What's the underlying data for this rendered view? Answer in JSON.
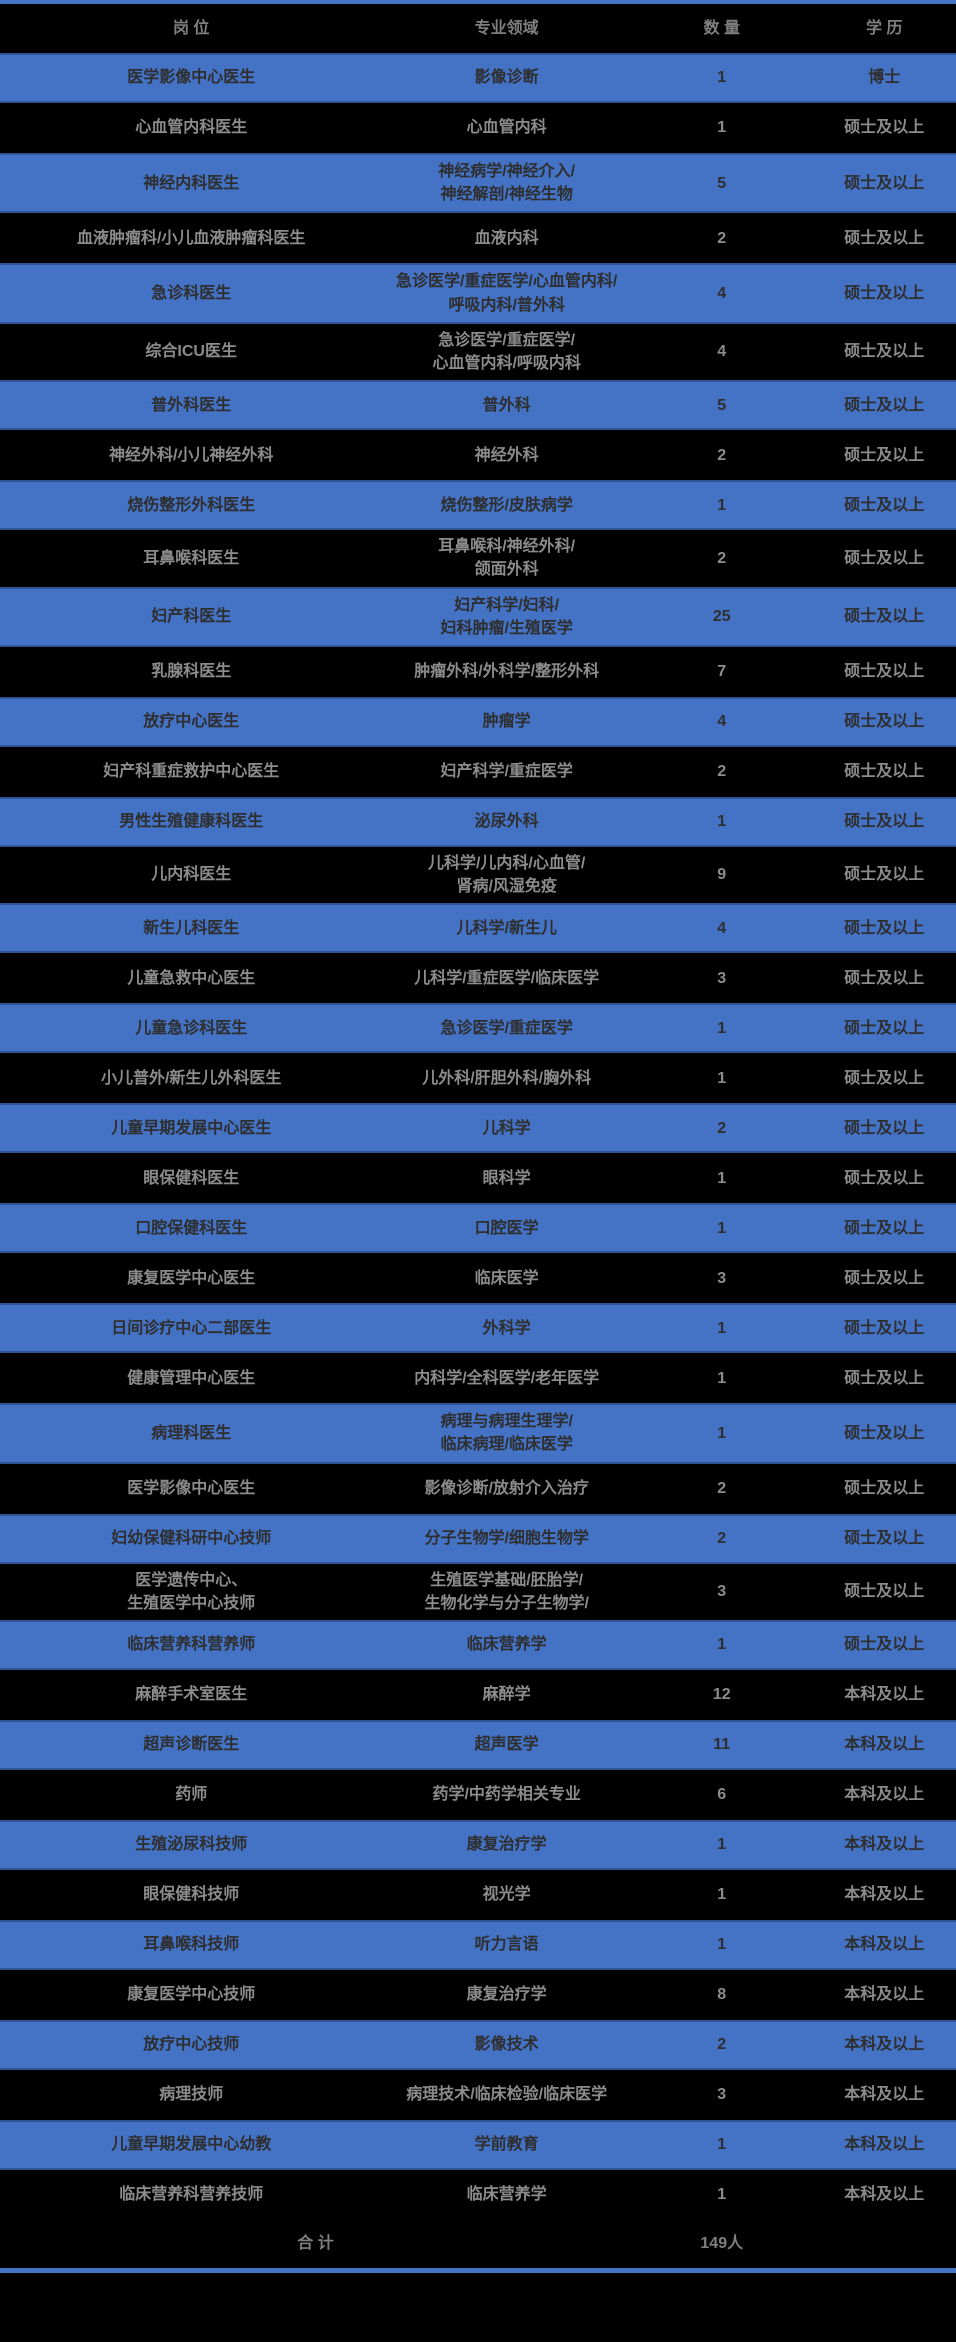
{
  "table": {
    "headers": {
      "position": "岗 位",
      "field": "专业领域",
      "count": "数 量",
      "education": "学 历"
    },
    "rows": [
      {
        "position": "医学影像中心医生",
        "field": "影像诊断",
        "count": "1",
        "education": "博士"
      },
      {
        "position": "心血管内科医生",
        "field": "心血管内科",
        "count": "1",
        "education": "硕士及以上"
      },
      {
        "position": "神经内科医生",
        "field": "神经病学/神经介入/\n神经解剖/神经生物",
        "count": "5",
        "education": "硕士及以上"
      },
      {
        "position": "血液肿瘤科/小儿血液肿瘤科医生",
        "field": "血液内科",
        "count": "2",
        "education": "硕士及以上"
      },
      {
        "position": "急诊科医生",
        "field": "急诊医学/重症医学/心血管内科/\n呼吸内科/普外科",
        "count": "4",
        "education": "硕士及以上"
      },
      {
        "position": "综合ICU医生",
        "field": "急诊医学/重症医学/\n心血管内科/呼吸内科",
        "count": "4",
        "education": "硕士及以上"
      },
      {
        "position": "普外科医生",
        "field": "普外科",
        "count": "5",
        "education": "硕士及以上"
      },
      {
        "position": "神经外科/小儿神经外科",
        "field": "神经外科",
        "count": "2",
        "education": "硕士及以上"
      },
      {
        "position": "烧伤整形外科医生",
        "field": "烧伤整形/皮肤病学",
        "count": "1",
        "education": "硕士及以上"
      },
      {
        "position": "耳鼻喉科医生",
        "field": "耳鼻喉科/神经外科/\n颌面外科",
        "count": "2",
        "education": "硕士及以上"
      },
      {
        "position": "妇产科医生",
        "field": "妇产科学/妇科/\n妇科肿瘤/生殖医学",
        "count": "25",
        "education": "硕士及以上"
      },
      {
        "position": "乳腺科医生",
        "field": "肿瘤外科/外科学/整形外科",
        "count": "7",
        "education": "硕士及以上"
      },
      {
        "position": "放疗中心医生",
        "field": "肿瘤学",
        "count": "4",
        "education": "硕士及以上"
      },
      {
        "position": "妇产科重症救护中心医生",
        "field": "妇产科学/重症医学",
        "count": "2",
        "education": "硕士及以上"
      },
      {
        "position": "男性生殖健康科医生",
        "field": "泌尿外科",
        "count": "1",
        "education": "硕士及以上"
      },
      {
        "position": "儿内科医生",
        "field": "儿科学/儿内科/心血管/\n肾病/风湿免疫",
        "count": "9",
        "education": "硕士及以上"
      },
      {
        "position": "新生儿科医生",
        "field": "儿科学/新生儿",
        "count": "4",
        "education": "硕士及以上"
      },
      {
        "position": "儿童急救中心医生",
        "field": "儿科学/重症医学/临床医学",
        "count": "3",
        "education": "硕士及以上"
      },
      {
        "position": "儿童急诊科医生",
        "field": "急诊医学/重症医学",
        "count": "1",
        "education": "硕士及以上"
      },
      {
        "position": "小儿普外/新生儿外科医生",
        "field": "儿外科/肝胆外科/胸外科",
        "count": "1",
        "education": "硕士及以上"
      },
      {
        "position": "儿童早期发展中心医生",
        "field": "儿科学",
        "count": "2",
        "education": "硕士及以上"
      },
      {
        "position": "眼保健科医生",
        "field": "眼科学",
        "count": "1",
        "education": "硕士及以上"
      },
      {
        "position": "口腔保健科医生",
        "field": "口腔医学",
        "count": "1",
        "education": "硕士及以上"
      },
      {
        "position": "康复医学中心医生",
        "field": "临床医学",
        "count": "3",
        "education": "硕士及以上"
      },
      {
        "position": "日间诊疗中心二部医生",
        "field": "外科学",
        "count": "1",
        "education": "硕士及以上"
      },
      {
        "position": "健康管理中心医生",
        "field": "内科学/全科医学/老年医学",
        "count": "1",
        "education": "硕士及以上"
      },
      {
        "position": "病理科医生",
        "field": "病理与病理生理学/\n临床病理/临床医学",
        "count": "1",
        "education": "硕士及以上"
      },
      {
        "position": "医学影像中心医生",
        "field": "影像诊断/放射介入治疗",
        "count": "2",
        "education": "硕士及以上"
      },
      {
        "position": "妇幼保健科研中心技师",
        "field": "分子生物学/细胞生物学",
        "count": "2",
        "education": "硕士及以上"
      },
      {
        "position": "医学遗传中心、\n生殖医学中心技师",
        "field": "生殖医学基础/胚胎学/\n生物化学与分子生物学/",
        "count": "3",
        "education": "硕士及以上"
      },
      {
        "position": "临床营养科营养师",
        "field": "临床营养学",
        "count": "1",
        "education": "硕士及以上"
      },
      {
        "position": "麻醉手术室医生",
        "field": "麻醉学",
        "count": "12",
        "education": "本科及以上"
      },
      {
        "position": "超声诊断医生",
        "field": "超声医学",
        "count": "11",
        "education": "本科及以上"
      },
      {
        "position": "药师",
        "field": "药学/中药学相关专业",
        "count": "6",
        "education": "本科及以上"
      },
      {
        "position": "生殖泌尿科技师",
        "field": "康复治疗学",
        "count": "1",
        "education": "本科及以上"
      },
      {
        "position": "眼保健科技师",
        "field": "视光学",
        "count": "1",
        "education": "本科及以上"
      },
      {
        "position": "耳鼻喉科技师",
        "field": "听力言语",
        "count": "1",
        "education": "本科及以上"
      },
      {
        "position": "康复医学中心技师",
        "field": "康复治疗学",
        "count": "8",
        "education": "本科及以上"
      },
      {
        "position": "放疗中心技师",
        "field": "影像技术",
        "count": "2",
        "education": "本科及以上"
      },
      {
        "position": "病理技师",
        "field": "病理技术/临床检验/临床医学",
        "count": "3",
        "education": "本科及以上"
      },
      {
        "position": "儿童早期发展中心幼教",
        "field": "学前教育",
        "count": "1",
        "education": "本科及以上"
      },
      {
        "position": "临床营养科营养技师",
        "field": "临床营养学",
        "count": "1",
        "education": "本科及以上"
      }
    ],
    "footer": {
      "label": "合 计",
      "total": "149人"
    }
  },
  "colors": {
    "accent_blue": "#4472C4",
    "row_border_blue": "#2F5597",
    "background_black": "#000000",
    "gray_text": "#8C8C8C",
    "header_gray_text": "#7F7F7F",
    "blue_row_text": "#2E2E2E"
  }
}
